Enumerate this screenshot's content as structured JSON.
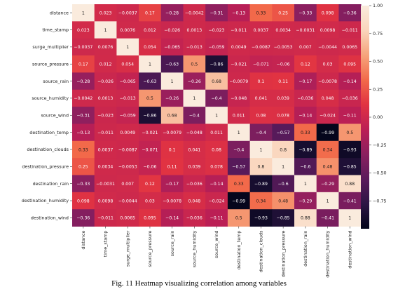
{
  "figure": {
    "caption": "Fig. 11 Heatmap visualizing correlation among variables"
  },
  "chart_data": {
    "type": "heatmap",
    "rows": [
      "distance",
      "time_stamp",
      "surge_multiplier",
      "source_pressure",
      "source_rain",
      "source_humidity",
      "source_wind",
      "destination_temp",
      "destination_clouds",
      "destination_pressure",
      "destination_rain",
      "destination_humidity",
      "destination_wind"
    ],
    "columns": [
      "distance",
      "time_stamp",
      "surge_multiplier",
      "source_pressure",
      "source_rain",
      "source_humidity",
      "source_wind",
      "destination_temp",
      "destination_clouds",
      "destination_pressure",
      "destination_rain",
      "destination_humidity",
      "destination_wind"
    ],
    "values": [
      [
        1,
        0.023,
        -0.0037,
        0.17,
        -0.28,
        -0.0042,
        -0.31,
        -0.13,
        0.33,
        0.25,
        -0.33,
        0.098,
        -0.36
      ],
      [
        0.023,
        1,
        0.0076,
        0.012,
        -0.026,
        0.0013,
        -0.023,
        -0.011,
        0.0037,
        0.0034,
        -0.0031,
        0.0098,
        -0.011
      ],
      [
        -0.0037,
        0.0076,
        1,
        0.054,
        -0.065,
        -0.013,
        -0.059,
        0.0049,
        -0.0087,
        -0.0053,
        0.007,
        -0.0044,
        0.0065
      ],
      [
        0.17,
        0.012,
        0.054,
        1,
        -0.63,
        0.5,
        -0.86,
        -0.021,
        -0.071,
        -0.06,
        0.12,
        0.03,
        0.095
      ],
      [
        -0.28,
        -0.026,
        -0.065,
        -0.63,
        1,
        -0.26,
        0.68,
        -0.0079,
        0.1,
        0.11,
        -0.17,
        -0.0078,
        -0.14
      ],
      [
        -0.0042,
        0.0013,
        -0.013,
        0.5,
        -0.26,
        1,
        -0.4,
        -0.048,
        0.041,
        0.039,
        -0.036,
        0.048,
        -0.036
      ],
      [
        -0.31,
        -0.023,
        -0.059,
        -0.86,
        0.68,
        -0.4,
        1,
        0.011,
        0.08,
        0.078,
        -0.14,
        -0.024,
        -0.11
      ],
      [
        -0.13,
        -0.011,
        0.0049,
        -0.021,
        -0.0079,
        -0.048,
        0.011,
        1,
        -0.4,
        -0.57,
        0.33,
        -0.99,
        0.5
      ],
      [
        0.33,
        0.0037,
        -0.0087,
        -0.071,
        0.1,
        0.041,
        0.08,
        -0.4,
        1,
        0.8,
        -0.89,
        0.34,
        -0.93
      ],
      [
        0.25,
        0.0034,
        -0.0053,
        -0.06,
        0.11,
        0.039,
        0.078,
        -0.57,
        0.8,
        1,
        -0.6,
        0.48,
        -0.85
      ],
      [
        -0.33,
        -0.0031,
        0.007,
        0.12,
        -0.17,
        -0.036,
        -0.14,
        0.33,
        -0.89,
        -0.6,
        1,
        -0.29,
        0.88
      ],
      [
        0.098,
        0.0098,
        -0.0044,
        0.03,
        -0.0078,
        0.048,
        -0.024,
        -0.99,
        0.34,
        0.48,
        -0.29,
        1,
        -0.41
      ],
      [
        -0.36,
        -0.011,
        0.0065,
        0.095,
        -0.14,
        -0.036,
        -0.11,
        0.5,
        -0.93,
        -0.85,
        0.88,
        -0.41,
        1
      ]
    ],
    "colorbar": {
      "range": [
        -1,
        1
      ],
      "ticks": [
        "1.00",
        "0.75",
        "0.50",
        "0.25",
        "0.00",
        "−0.25",
        "−0.50",
        "−0.75"
      ],
      "tick_values": [
        1.0,
        0.75,
        0.5,
        0.25,
        0.0,
        -0.25,
        -0.5,
        -0.75
      ],
      "colormap": "rocket",
      "stops": [
        "#03051a",
        "#2c1544",
        "#5a1a5b",
        "#8a1f5f",
        "#bb1f55",
        "#e13342",
        "#f26a4a",
        "#f6a47c",
        "#fad5bc",
        "#faebdd"
      ]
    }
  }
}
